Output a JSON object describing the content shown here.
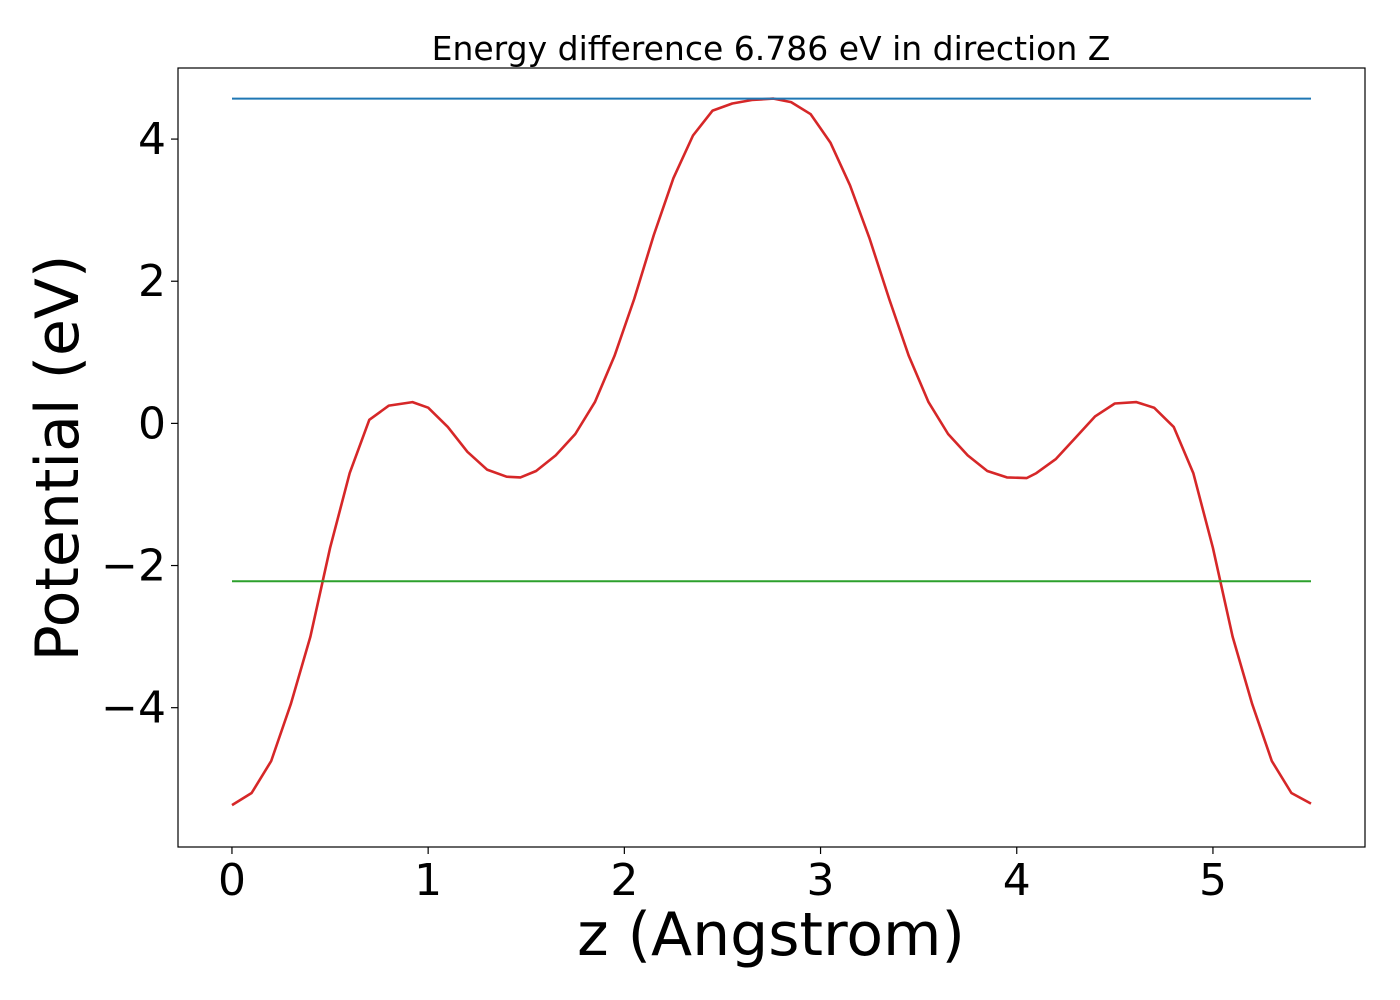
{
  "chart_data": {
    "type": "line",
    "title": "Energy difference 6.786 eV in direction Z",
    "xlabel": "z (Angstrom)",
    "ylabel": "Potential (eV)",
    "xlim": [
      -0.275,
      5.775
    ],
    "ylim": [
      -5.96,
      5.0
    ],
    "xticks": [
      0,
      1,
      2,
      3,
      4,
      5
    ],
    "xtick_labels": [
      "0",
      "1",
      "2",
      "3",
      "4",
      "5"
    ],
    "yticks": [
      -4,
      -2,
      0,
      2,
      4
    ],
    "ytick_labels": [
      "−4",
      "−2",
      "0",
      "2",
      "4"
    ],
    "grid": false,
    "series": [
      {
        "color": "#d62728",
        "x": [
          0,
          0.1,
          0.2,
          0.3,
          0.4,
          0.5,
          0.6,
          0.7,
          0.8,
          0.92,
          1.0,
          1.1,
          1.2,
          1.3,
          1.4,
          1.47,
          1.55,
          1.65,
          1.75,
          1.85,
          1.95,
          2.05,
          2.15,
          2.25,
          2.35,
          2.45,
          2.55,
          2.65,
          2.76,
          2.85,
          2.95,
          3.05,
          3.15,
          3.25,
          3.35,
          3.45,
          3.55,
          3.65,
          3.75,
          3.85,
          3.95,
          4.05,
          4.1,
          4.2,
          4.3,
          4.4,
          4.5,
          4.61,
          4.7,
          4.8,
          4.9,
          5.0,
          5.1,
          5.2,
          5.3,
          5.4,
          5.5
        ],
        "y": [
          -5.37,
          -5.2,
          -4.75,
          -3.95,
          -3.0,
          -1.75,
          -0.7,
          0.05,
          0.25,
          0.3,
          0.22,
          -0.05,
          -0.4,
          -0.65,
          -0.75,
          -0.76,
          -0.67,
          -0.45,
          -0.15,
          0.3,
          0.95,
          1.75,
          2.65,
          3.45,
          4.05,
          4.4,
          4.5,
          4.55,
          4.57,
          4.52,
          4.35,
          3.95,
          3.35,
          2.6,
          1.75,
          0.95,
          0.3,
          -0.15,
          -0.45,
          -0.67,
          -0.76,
          -0.77,
          -0.7,
          -0.5,
          -0.2,
          0.1,
          0.28,
          0.3,
          0.22,
          -0.05,
          -0.7,
          -1.75,
          -3.0,
          -3.95,
          -4.75,
          -5.2,
          -5.35
        ]
      },
      {
        "color": "#1f77b4",
        "x": [
          0,
          5.5
        ],
        "y": [
          4.57,
          4.57
        ]
      },
      {
        "color": "#2ca02c",
        "x": [
          0,
          5.5
        ],
        "y": [
          -2.22,
          -2.22
        ]
      }
    ]
  }
}
